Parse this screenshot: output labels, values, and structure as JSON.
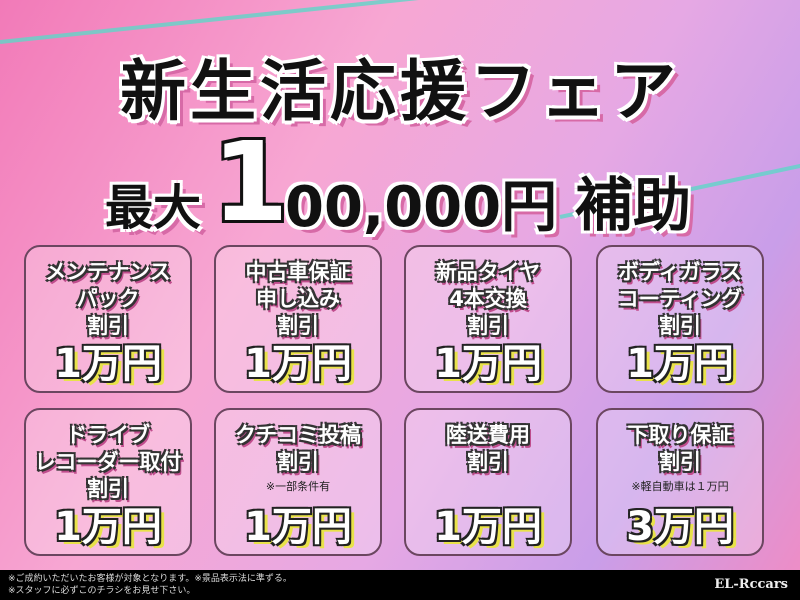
{
  "headline": "新生活応援フェア",
  "offer": {
    "prefix": "最大",
    "amount_lead": "1",
    "amount_rest": "00,000円",
    "suffix": "補助"
  },
  "cards": [
    {
      "label": "メンテナンス\nパック\n割引",
      "note": "",
      "amount": "1万円"
    },
    {
      "label": "中古車保証\n申し込み\n割引",
      "note": "",
      "amount": "1万円"
    },
    {
      "label": "新品タイヤ\n4本交換\n割引",
      "note": "",
      "amount": "1万円"
    },
    {
      "label": "ボディガラス\nコーティング\n割引",
      "note": "",
      "amount": "1万円"
    },
    {
      "label": "ドライブ\nレコーダー取付\n割引",
      "note": "",
      "amount": "1万円"
    },
    {
      "label": "クチコミ投稿\n割引",
      "note": "※一部条件有",
      "amount": "1万円"
    },
    {
      "label": "陸送費用\n割引",
      "note": "",
      "amount": "1万円"
    },
    {
      "label": "下取り保証\n割引",
      "note": "※軽自動車は１万円",
      "amount": "3万円"
    }
  ],
  "footer": {
    "line1": "※ご成約いただいたお客様が対象となります。※景品表示法に準ずる。",
    "line2": "※スタッフに必ずこのチラシをお見せ下さい。",
    "logo": "EL-Rccars"
  },
  "colors": {
    "accent_pink": "#f27ab8",
    "accent_teal": "#5fd6c8",
    "amount_shadow": "#e8e24a"
  }
}
